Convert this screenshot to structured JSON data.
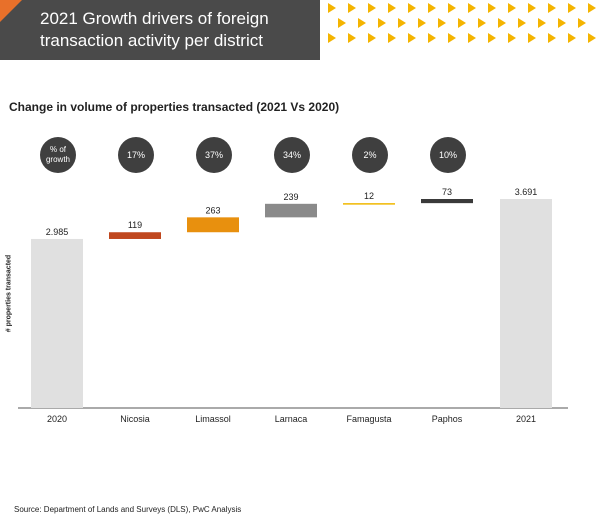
{
  "header": {
    "title": "2021 Growth drivers of foreign transaction activity per district"
  },
  "subtitle": "Change in volume of properties transacted (2021 Vs 2020)",
  "badges": [
    "% of growth",
    "17%",
    "37%",
    "34%",
    "2%",
    "10%"
  ],
  "source": "Source: Department of Lands and Surveys (DLS), PwC Analysis",
  "colors": {
    "header_bg": "#4a4a4a",
    "accent_orange": "#e8702a",
    "chevron_yellow": "#f4b400",
    "total_bar": "#e0e0e0",
    "badge_bg": "#3f3f3f"
  },
  "chart_data": {
    "type": "waterfall",
    "title": "Change in volume of properties transacted (2021 Vs 2020)",
    "ylabel": "# properties transacted",
    "categories": [
      "2020",
      "Nicosia",
      "Limassol",
      "Larnaca",
      "Famagusta",
      "Paphos",
      "2021"
    ],
    "values": [
      2985,
      119,
      263,
      239,
      12,
      73,
      3691
    ],
    "labels": [
      "2.985",
      "119",
      "263",
      "239",
      "12",
      "73",
      "3.691"
    ],
    "kinds": [
      "total",
      "delta",
      "delta",
      "delta",
      "delta",
      "delta",
      "total"
    ],
    "colors": [
      "#e0e0e0",
      "#c0471e",
      "#e8900e",
      "#8a8a8a",
      "#f0b800",
      "#3a3a3a",
      "#e0e0e0"
    ],
    "ylim": [
      0,
      3691
    ]
  }
}
